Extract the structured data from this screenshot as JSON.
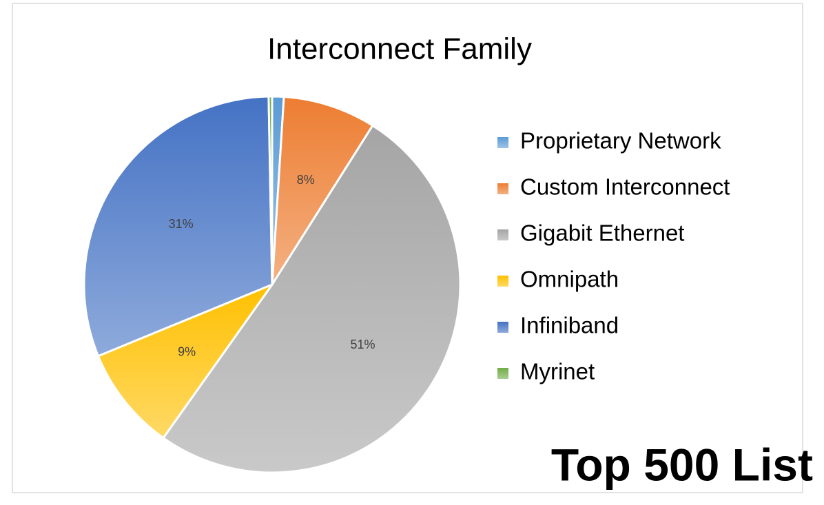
{
  "chart_data": {
    "type": "pie",
    "title": "Interconnect Family",
    "categories": [
      "Proprietary Network",
      "Custom Interconnect",
      "Gigabit Ethernet",
      "Omnipath",
      "Infiniband",
      "Myrinet"
    ],
    "values": [
      1,
      8,
      51,
      9,
      31,
      0.3
    ],
    "value_labels": [
      null,
      "8%",
      "51%",
      "9%",
      "31%",
      null
    ],
    "colors": [
      "#5b9bd5",
      "#ed7d31",
      "#a5a5a5",
      "#ffc000",
      "#4472c4",
      "#70ad47"
    ],
    "legend": "right",
    "annotation": "Top 500 List"
  }
}
